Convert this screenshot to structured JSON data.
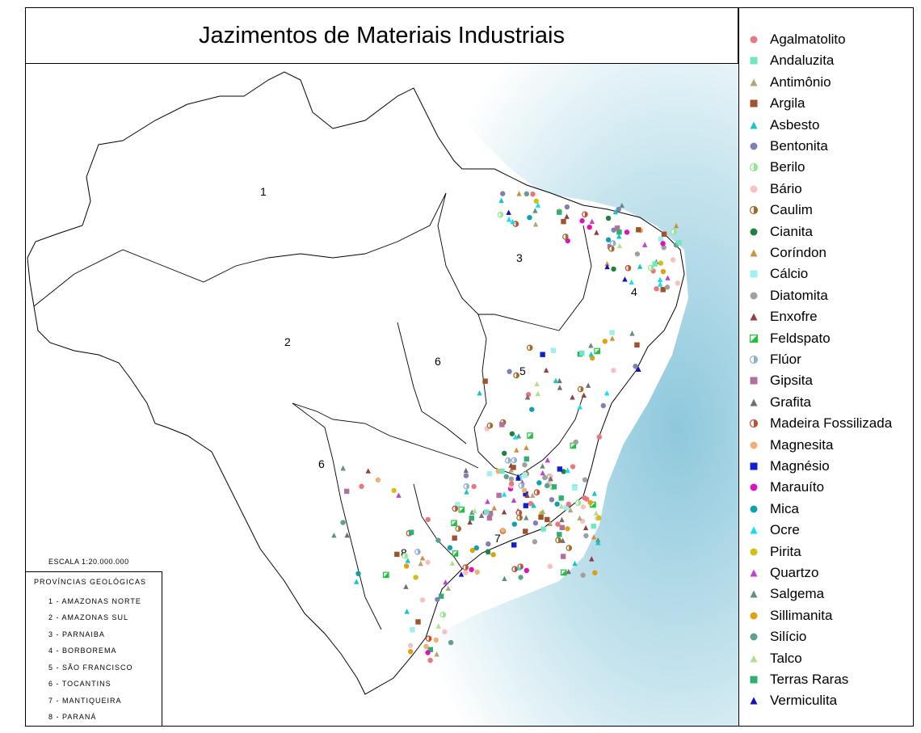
{
  "title": "Jazimentos de Materiais Industriais",
  "scale": "ESCALA 1:20.000.000",
  "provinces": {
    "title": "PROVÍNCIAS GEOLÓGICAS",
    "items": [
      "1 - AMAZONAS NORTE",
      "2 - AMAZONAS SUL",
      "3 - PARNAIBA",
      "4 - BORBOREMA",
      "5 - SÃO FRANCISCO",
      "6 - TOCANTINS",
      "7 - MANTIQUEIRA",
      "8 - PARANÁ"
    ]
  },
  "map_labels": [
    "1",
    "2",
    "3",
    "4",
    "5",
    "6",
    "6",
    "7",
    "8"
  ],
  "legend": [
    {
      "label": "Agalmatolito",
      "shape": "circle",
      "color": "#e8787e"
    },
    {
      "label": "Andaluzita",
      "shape": "square",
      "color": "#6ee8c0"
    },
    {
      "label": "Antimônio",
      "shape": "triangle",
      "color": "#b0a878"
    },
    {
      "label": "Argila",
      "shape": "square",
      "color": "#a0522d"
    },
    {
      "label": "Asbesto",
      "shape": "triangle",
      "color": "#10c8c8"
    },
    {
      "label": "Bentonita",
      "shape": "circle",
      "color": "#8080b8"
    },
    {
      "label": "Berilo",
      "shape": "halfcircle",
      "color": "#90e890"
    },
    {
      "label": "Bário",
      "shape": "circle",
      "color": "#f8c0c0"
    },
    {
      "label": "Caulim",
      "shape": "halfcircle",
      "color": "#a06a28"
    },
    {
      "label": "Cianita",
      "shape": "circle",
      "color": "#208040"
    },
    {
      "label": "Coríndon",
      "shape": "triangle",
      "color": "#d09040"
    },
    {
      "label": "Cálcio",
      "shape": "square",
      "color": "#a0f0f0"
    },
    {
      "label": "Diatomita",
      "shape": "circle",
      "color": "#a0a0a0"
    },
    {
      "label": "Enxofre",
      "shape": "triangle",
      "color": "#904040"
    },
    {
      "label": "Feldspato",
      "shape": "halfsquare",
      "color": "#20c040"
    },
    {
      "label": "Flúor",
      "shape": "halfcircle",
      "color": "#90b0d0"
    },
    {
      "label": "Gipsita",
      "shape": "square",
      "color": "#b070a0"
    },
    {
      "label": "Grafita",
      "shape": "triangle",
      "color": "#707070"
    },
    {
      "label": "Madeira Fossilizada",
      "shape": "halfcircle",
      "color": "#c05030"
    },
    {
      "label": "Magnesita",
      "shape": "circle",
      "color": "#f0b070"
    },
    {
      "label": "Magnésio",
      "shape": "square",
      "color": "#1020d0"
    },
    {
      "label": "Marauíto",
      "shape": "circle",
      "color": "#e010c0"
    },
    {
      "label": "Mica",
      "shape": "circle",
      "color": "#10a0b0"
    },
    {
      "label": "Ocre",
      "shape": "triangle",
      "color": "#10e0f0"
    },
    {
      "label": "Pirita",
      "shape": "circle",
      "color": "#d0c010"
    },
    {
      "label": "Quartzo",
      "shape": "triangle",
      "color": "#c040d0"
    },
    {
      "label": "Salgema",
      "shape": "triangle",
      "color": "#609080"
    },
    {
      "label": "Sillimanita",
      "shape": "circle",
      "color": "#e0a010"
    },
    {
      "label": "Silício",
      "shape": "circle",
      "color": "#60a090"
    },
    {
      "label": "Talco",
      "shape": "triangle",
      "color": "#b0e090"
    },
    {
      "label": "Terras Raras",
      "shape": "square",
      "color": "#30b070"
    },
    {
      "label": "Vermiculita",
      "shape": "triangle",
      "color": "#1010c0"
    }
  ]
}
